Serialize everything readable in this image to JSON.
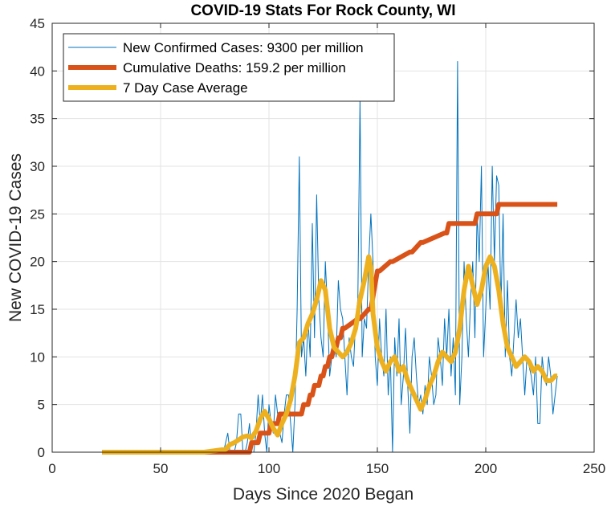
{
  "chart_data": {
    "type": "line",
    "title": "COVID-19 Stats For Rock County, WI",
    "xlabel": "Days Since 2020 Began",
    "ylabel": "New COVID-19 Cases",
    "xlim": [
      0,
      250
    ],
    "ylim": [
      0,
      45
    ],
    "xticks": [
      0,
      50,
      100,
      150,
      200,
      250
    ],
    "yticks": [
      0,
      5,
      10,
      15,
      20,
      25,
      30,
      35,
      40,
      45
    ],
    "grid": true,
    "legend_position": "top-left",
    "series": [
      {
        "name": "New Confirmed Cases: 9300 per million",
        "color": "#0072BD",
        "x": [
          23,
          30,
          40,
          50,
          60,
          70,
          79,
          80,
          81,
          82,
          83,
          84,
          85,
          86,
          87,
          88,
          89,
          90,
          91,
          92,
          93,
          94,
          95,
          96,
          97,
          98,
          99,
          100,
          101,
          102,
          103,
          104,
          105,
          106,
          107,
          108,
          109,
          110,
          111,
          112,
          113,
          114,
          115,
          116,
          117,
          118,
          119,
          120,
          121,
          122,
          123,
          124,
          125,
          126,
          127,
          128,
          129,
          130,
          131,
          132,
          133,
          134,
          135,
          136,
          137,
          138,
          139,
          140,
          141,
          142,
          143,
          144,
          145,
          146,
          147,
          148,
          149,
          150,
          151,
          152,
          153,
          154,
          155,
          156,
          157,
          158,
          159,
          160,
          161,
          162,
          163,
          164,
          165,
          166,
          167,
          168,
          169,
          170,
          171,
          172,
          173,
          174,
          175,
          176,
          177,
          178,
          179,
          180,
          181,
          182,
          183,
          184,
          185,
          186,
          187,
          188,
          189,
          190,
          191,
          192,
          193,
          194,
          195,
          196,
          197,
          198,
          199,
          200,
          201,
          202,
          203,
          204,
          205,
          206,
          207,
          208,
          209,
          210,
          211,
          212,
          213,
          214,
          215,
          216,
          217,
          218,
          219,
          220,
          221,
          222,
          223,
          224,
          225,
          226,
          227,
          228,
          229,
          230,
          231,
          232,
          233
        ],
        "values": [
          0,
          0,
          0,
          0,
          0,
          0,
          0,
          1,
          2,
          0,
          0,
          0,
          1,
          4,
          4,
          0,
          0,
          1,
          3,
          0,
          0,
          2,
          6,
          3,
          6,
          2,
          0,
          5,
          3,
          2,
          6,
          4,
          2,
          1,
          4,
          6,
          6,
          3,
          0,
          5,
          15,
          31,
          10,
          12,
          8,
          14,
          10,
          24,
          12,
          27,
          16,
          12,
          10,
          20,
          15,
          8,
          10,
          12,
          10,
          18,
          15,
          14,
          10,
          6,
          12,
          10,
          9,
          14,
          16,
          37,
          10,
          14,
          13,
          20,
          25,
          20,
          10,
          7,
          14,
          10,
          8,
          15,
          6,
          10,
          0,
          12,
          8,
          14,
          5,
          8,
          13,
          7,
          2,
          10,
          12,
          8,
          5,
          6,
          4,
          7,
          5,
          10,
          8,
          5,
          6,
          12,
          10,
          7,
          14,
          10,
          15,
          8,
          12,
          6,
          41,
          5,
          10,
          20,
          14,
          10,
          16,
          20,
          12,
          25,
          20,
          30,
          10,
          15,
          20,
          15,
          30,
          20,
          29,
          28,
          15,
          25,
          10,
          18,
          10,
          8,
          12,
          16,
          12,
          14,
          10,
          6,
          10,
          9,
          8,
          6,
          10,
          3,
          3,
          10,
          8,
          7,
          10,
          8,
          4,
          6,
          8
        ]
      },
      {
        "name": "Cumulative Deaths: 159.2 per million",
        "color": "#D95319",
        "x": [
          23,
          91,
          92,
          95,
          96,
          100,
          101,
          104,
          105,
          115,
          116,
          118,
          119,
          120,
          121,
          123,
          124,
          125,
          126,
          127,
          128,
          129,
          130,
          131,
          132,
          133,
          134,
          135,
          141,
          142,
          146,
          147,
          150,
          151,
          156,
          157,
          165,
          166,
          170,
          171,
          181,
          182,
          183,
          195,
          196,
          205,
          206,
          213,
          214,
          233
        ],
        "values": [
          0,
          0,
          1,
          1,
          2,
          2,
          3,
          3,
          4,
          4,
          5,
          5,
          6,
          6,
          7,
          7,
          8,
          8,
          9,
          9,
          10,
          10,
          11,
          11,
          12,
          12,
          13,
          13,
          14,
          14,
          15,
          15,
          19,
          19,
          20,
          20,
          21,
          21,
          22,
          22,
          23,
          23,
          24,
          24,
          25,
          25,
          26,
          26,
          26,
          26
        ]
      },
      {
        "name": "7 Day Case Average",
        "color": "#EDB120",
        "x": [
          23,
          30,
          40,
          50,
          60,
          70,
          80,
          82,
          84,
          86,
          88,
          90,
          92,
          94,
          96,
          98,
          100,
          102,
          104,
          106,
          108,
          110,
          112,
          114,
          116,
          118,
          120,
          122,
          124,
          126,
          128,
          130,
          132,
          134,
          136,
          138,
          140,
          142,
          144,
          146,
          147,
          148,
          150,
          152,
          154,
          156,
          158,
          160,
          162,
          164,
          166,
          168,
          170,
          172,
          174,
          176,
          178,
          180,
          182,
          184,
          186,
          188,
          190,
          192,
          194,
          196,
          198,
          200,
          202,
          204,
          206,
          208,
          210,
          212,
          214,
          216,
          218,
          220,
          222,
          224,
          226,
          228,
          230,
          232,
          233
        ],
        "values": [
          0,
          0,
          0,
          0,
          0,
          0,
          0.3,
          0.8,
          1.0,
          1.3,
          1.6,
          1.7,
          1.5,
          2.2,
          3.5,
          4.3,
          3.5,
          2.5,
          1.8,
          3.0,
          4.0,
          5.5,
          8.0,
          11.5,
          12.0,
          13.5,
          14.5,
          16.0,
          18.0,
          17.0,
          13.0,
          11.0,
          10.5,
          10.0,
          10.5,
          11.5,
          13.0,
          16.0,
          18.0,
          20.5,
          19.5,
          14.5,
          11.0,
          9.5,
          8.5,
          9.5,
          10.0,
          8.5,
          9.0,
          7.5,
          6.5,
          5.5,
          4.5,
          5.5,
          7.0,
          8.0,
          9.5,
          10.5,
          10.0,
          9.5,
          10.5,
          13.0,
          17.0,
          19.5,
          17.5,
          15.5,
          17.0,
          19.5,
          20.5,
          19.5,
          17.0,
          13.5,
          11.0,
          10.0,
          9.0,
          9.5,
          10.0,
          9.5,
          8.5,
          9.0,
          8.5,
          7.5,
          7.5,
          8.0,
          8.0
        ]
      }
    ]
  }
}
